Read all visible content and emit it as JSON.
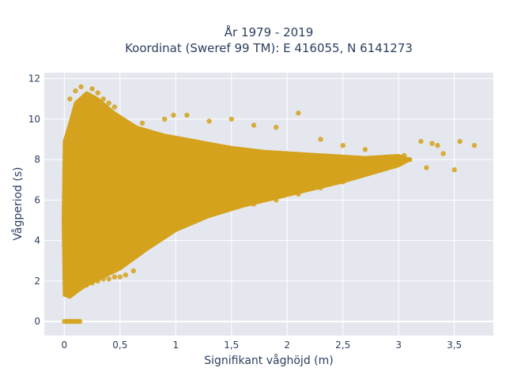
{
  "chart_data": {
    "type": "scatter",
    "title_lines": [
      "År 1979 - 2019",
      "Koordinat (Sweref 99 TM): E 416055, N 6141273"
    ],
    "xlabel": "Signifikant våghöjd (m)",
    "ylabel": "Vågperiod (s)",
    "xlim": [
      -0.18,
      3.85
    ],
    "ylim": [
      -0.7,
      12.3
    ],
    "x_ticks": [
      0,
      0.5,
      1,
      1.5,
      2,
      2.5,
      3,
      3.5
    ],
    "x_tick_labels": [
      "0",
      "0,5",
      "1",
      "1,5",
      "2",
      "2,5",
      "3",
      "3,5"
    ],
    "y_ticks": [
      0,
      2,
      4,
      6,
      8,
      10,
      12
    ],
    "y_tick_labels": [
      "0",
      "2",
      "4",
      "6",
      "8",
      "10",
      "12"
    ],
    "grid": true,
    "legend": "none",
    "marker_color": "#d4a21c",
    "plot_bg": "#e5e7ef",
    "grid_color": "#ffffff",
    "series": [
      {
        "x": [
          0.0,
          0.02,
          0.04,
          0.06,
          0.08,
          0.1,
          0.12,
          0.14,
          0.03,
          0.05,
          0.08,
          0.12,
          0.15,
          0.2,
          0.25,
          0.3,
          0.35,
          0.4,
          0.45,
          0.5,
          0.55,
          0.05,
          0.1,
          0.15,
          0.2,
          0.25,
          0.3,
          0.35,
          0.4,
          0.45,
          0.2,
          0.3,
          0.5,
          0.7,
          0.9,
          1.1,
          1.3,
          1.5,
          1.7,
          1.9,
          2.1,
          2.3,
          2.5,
          2.7,
          0.3,
          0.5,
          0.7,
          0.9,
          1.1,
          1.3,
          1.5,
          1.7,
          1.9,
          2.1,
          2.3,
          2.5,
          2.8,
          2.9,
          3.0,
          3.05,
          3.1,
          3.2,
          3.25,
          3.3,
          3.35,
          3.4,
          3.5,
          3.55,
          3.68,
          0.2,
          0.3,
          0.4,
          0.6,
          0.8,
          1.0,
          1.2,
          1.4,
          1.6,
          1.8,
          2.0,
          2.2,
          2.4,
          0.03,
          0.06,
          0.1,
          0.15,
          0.2,
          0.25,
          0.3,
          0.35,
          0.45,
          0.55,
          0.65,
          0.85,
          1.0,
          1.2,
          1.5,
          2.05,
          2.5,
          0.62,
          0.98,
          1.35
        ],
        "y": [
          0,
          0,
          0,
          0,
          0,
          0,
          0,
          0,
          1.3,
          1.6,
          1.8,
          2.0,
          1.9,
          1.8,
          1.9,
          2.0,
          2.1,
          2.1,
          2.2,
          2.2,
          2.3,
          11.0,
          11.4,
          11.6,
          11.2,
          11.5,
          11.3,
          11.0,
          10.8,
          10.6,
          9.5,
          9.8,
          9.6,
          9.8,
          10.0,
          10.2,
          9.9,
          10.0,
          9.7,
          9.6,
          10.3,
          9.0,
          8.7,
          8.5,
          3.0,
          3.6,
          4.2,
          4.6,
          5.0,
          5.3,
          5.6,
          5.8,
          6.0,
          6.3,
          6.6,
          6.9,
          7.8,
          7.6,
          7.8,
          8.2,
          8.0,
          8.9,
          7.6,
          8.8,
          8.7,
          8.3,
          7.5,
          8.9,
          8.7,
          6.0,
          6.5,
          7.0,
          7.2,
          7.4,
          7.6,
          7.7,
          7.8,
          8.0,
          8.2,
          8.3,
          8.0,
          7.9,
          3.5,
          4.0,
          5.0,
          6.0,
          7.0,
          8.0,
          9.0,
          8.5,
          8.0,
          7.5,
          7.0,
          6.8,
          7.0,
          7.2,
          7.4,
          7.6,
          7.8,
          2.5,
          10.2,
          8.5
        ]
      }
    ]
  }
}
